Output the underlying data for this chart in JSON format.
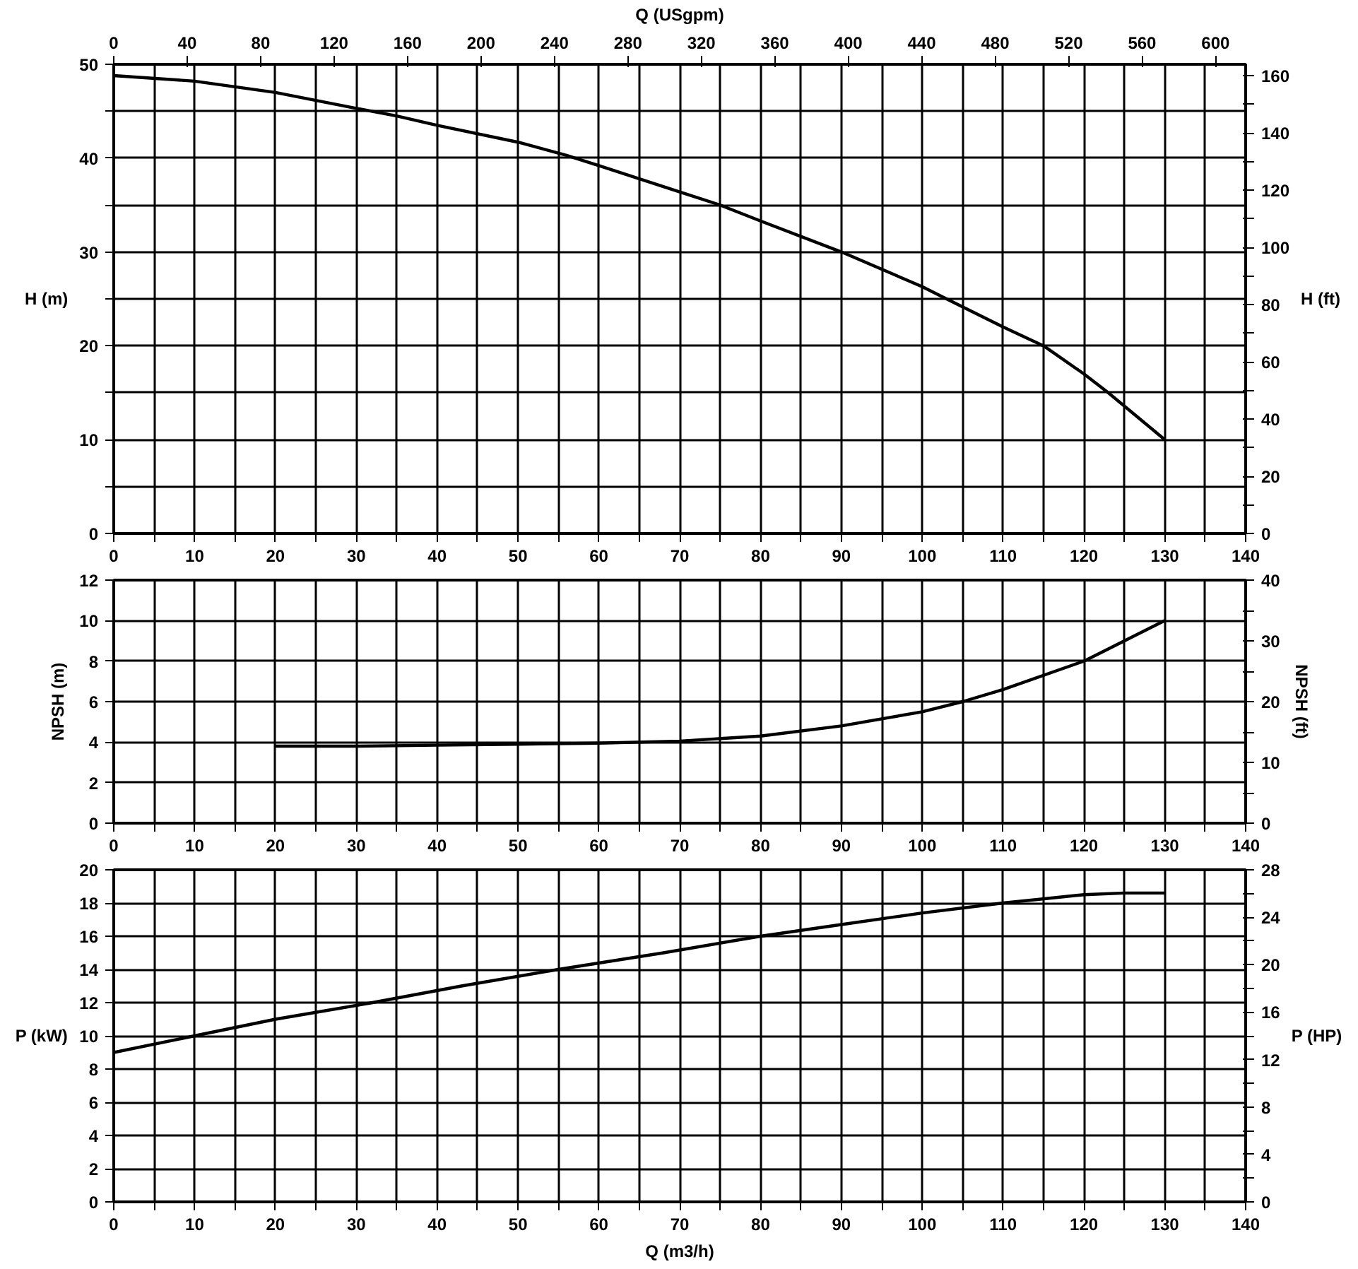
{
  "chart_data": [
    {
      "type": "line",
      "x2label": "Q (USgpm)",
      "ylabel": "H (m)",
      "y2label": "H (ft)",
      "xlim": [
        0,
        140
      ],
      "xticks": [
        0,
        {
          "value": 5,
          "label": null
        },
        10,
        {
          "value": 15,
          "label": null
        },
        20,
        {
          "value": 25,
          "label": null
        },
        30,
        {
          "value": 35,
          "label": null
        },
        40,
        {
          "value": 45,
          "label": null
        },
        50,
        {
          "value": 55,
          "label": null
        },
        60,
        {
          "value": 65,
          "label": null
        },
        70,
        {
          "value": 75,
          "label": null
        },
        80,
        {
          "value": 85,
          "label": null
        },
        90,
        {
          "value": 95,
          "label": null
        },
        100,
        {
          "value": 105,
          "label": null
        },
        110,
        {
          "value": 115,
          "label": null
        },
        120,
        {
          "value": 125,
          "label": null
        },
        130,
        {
          "value": 135,
          "label": null
        },
        140
      ],
      "x2lim": [
        0,
        616.4
      ],
      "x2ticks": [
        0,
        40,
        80,
        120,
        160,
        200,
        240,
        280,
        320,
        360,
        400,
        440,
        480,
        520,
        560,
        600
      ],
      "ylim": [
        0,
        50
      ],
      "yticks": [
        0,
        {
          "value": 5,
          "label": null
        },
        10,
        {
          "value": 15,
          "label": null
        },
        20,
        {
          "value": 25,
          "label": null
        },
        30,
        {
          "value": 35,
          "label": null
        },
        40,
        {
          "value": 45,
          "label": null
        },
        50
      ],
      "y2lim": [
        0,
        164
      ],
      "y2ticks": [
        0,
        {
          "value": 10,
          "label": null
        },
        20,
        {
          "value": 30,
          "label": null
        },
        40,
        {
          "value": 50,
          "label": null
        },
        60,
        {
          "value": 70,
          "label": null
        },
        80,
        {
          "value": 90,
          "label": null
        },
        100,
        {
          "value": 110,
          "label": null
        },
        120,
        {
          "value": 130,
          "label": null
        },
        140,
        {
          "value": 150,
          "label": null
        },
        160
      ],
      "grid": true,
      "series": [
        {
          "color": "#000000",
          "x": [
            0,
            10,
            20,
            30,
            35,
            40,
            50,
            56,
            60,
            70,
            75,
            80,
            90,
            100,
            103,
            110,
            115,
            120,
            123,
            130
          ],
          "values": [
            48.8,
            48.2,
            47,
            45.3,
            44.5,
            43.5,
            41.7,
            40.3,
            39.2,
            36.4,
            35,
            33.3,
            30,
            26.3,
            25,
            22,
            20,
            17,
            15,
            10
          ]
        }
      ]
    },
    {
      "type": "line",
      "ylabel": "NPSH (m)",
      "y2label": "NPSH (ft)",
      "xlim": [
        0,
        140
      ],
      "xticks": [
        0,
        {
          "value": 5,
          "label": null
        },
        10,
        {
          "value": 15,
          "label": null
        },
        20,
        {
          "value": 25,
          "label": null
        },
        30,
        {
          "value": 35,
          "label": null
        },
        40,
        {
          "value": 45,
          "label": null
        },
        50,
        {
          "value": 55,
          "label": null
        },
        60,
        {
          "value": 65,
          "label": null
        },
        70,
        {
          "value": 75,
          "label": null
        },
        80,
        {
          "value": 85,
          "label": null
        },
        90,
        {
          "value": 95,
          "label": null
        },
        100,
        {
          "value": 105,
          "label": null
        },
        110,
        {
          "value": 115,
          "label": null
        },
        120,
        {
          "value": 125,
          "label": null
        },
        130,
        {
          "value": 135,
          "label": null
        },
        140
      ],
      "ylim": [
        0,
        12
      ],
      "yticks": [
        0,
        2,
        4,
        6,
        8,
        10,
        12
      ],
      "y2lim": [
        0,
        40
      ],
      "y2ticks": [
        0,
        {
          "value": 5,
          "label": null
        },
        10,
        {
          "value": 15,
          "label": null
        },
        20,
        {
          "value": 25,
          "label": null
        },
        30,
        {
          "value": 35,
          "label": null
        },
        40
      ],
      "grid": true,
      "series": [
        {
          "color": "#000000",
          "x": [
            20,
            30,
            40,
            50,
            60,
            70,
            80,
            90,
            100,
            105,
            110,
            120,
            130
          ],
          "values": [
            3.8,
            3.8,
            3.85,
            3.9,
            3.95,
            4.05,
            4.3,
            4.8,
            5.5,
            6,
            6.6,
            8,
            10
          ]
        }
      ]
    },
    {
      "type": "line",
      "xlabel": "Q (m3/h)",
      "ylabel": "P (kW)",
      "y2label": "P (HP)",
      "xlim": [
        0,
        140
      ],
      "xticks": [
        0,
        {
          "value": 5,
          "label": null
        },
        10,
        {
          "value": 15,
          "label": null
        },
        20,
        {
          "value": 25,
          "label": null
        },
        30,
        {
          "value": 35,
          "label": null
        },
        40,
        {
          "value": 45,
          "label": null
        },
        50,
        {
          "value": 55,
          "label": null
        },
        60,
        {
          "value": 65,
          "label": null
        },
        70,
        {
          "value": 75,
          "label": null
        },
        80,
        {
          "value": 85,
          "label": null
        },
        90,
        {
          "value": 95,
          "label": null
        },
        100,
        {
          "value": 105,
          "label": null
        },
        110,
        {
          "value": 115,
          "label": null
        },
        120,
        {
          "value": 125,
          "label": null
        },
        130,
        {
          "value": 135,
          "label": null
        },
        140
      ],
      "ylim": [
        0,
        20
      ],
      "yticks": [
        0,
        2,
        4,
        6,
        8,
        10,
        12,
        14,
        16,
        18,
        20
      ],
      "y2lim": [
        0,
        28
      ],
      "y2ticks": [
        0,
        {
          "value": 2,
          "label": null
        },
        4,
        {
          "value": 6,
          "label": null
        },
        8,
        {
          "value": 10,
          "label": null
        },
        12,
        {
          "value": 14,
          "label": null
        },
        16,
        {
          "value": 18,
          "label": null
        },
        20,
        {
          "value": 22,
          "label": null
        },
        24,
        {
          "value": 26,
          "label": null
        },
        28
      ],
      "grid": true,
      "series": [
        {
          "color": "#000000",
          "x": [
            0,
            10,
            20,
            32,
            43,
            55,
            68,
            80,
            90,
            100,
            110,
            120,
            125,
            130
          ],
          "values": [
            9,
            10,
            11,
            12,
            13,
            14,
            15,
            16,
            16.7,
            17.4,
            18,
            18.5,
            18.6,
            18.6
          ]
        }
      ]
    }
  ]
}
